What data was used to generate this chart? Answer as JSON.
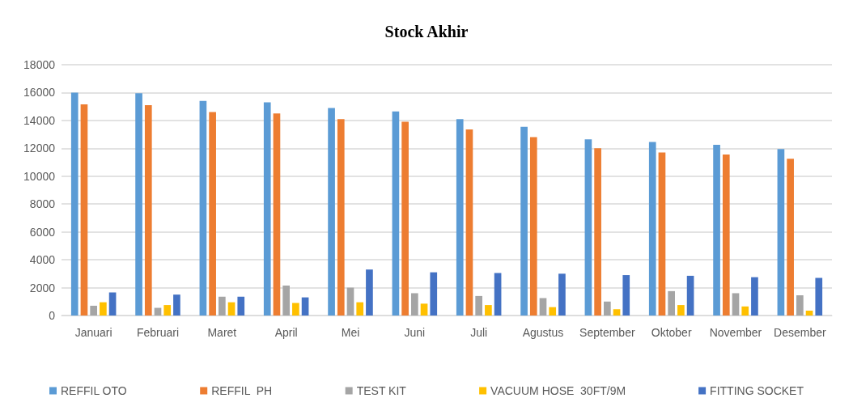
{
  "chart_data": {
    "type": "bar",
    "title": "Stock Akhir",
    "categories": [
      "Januari",
      "Februari",
      "Maret",
      "April",
      "Mei",
      "Juni",
      "Juli",
      "Agustus",
      "September",
      "Oktober",
      "November",
      "Desember"
    ],
    "series": [
      {
        "name": "REFFIL OTO",
        "color": "#5b9bd5",
        "values": [
          16000,
          15950,
          15400,
          15300,
          14900,
          14650,
          14100,
          13550,
          12650,
          12450,
          12250,
          11950
        ]
      },
      {
        "name": "REFFIL  PH",
        "color": "#ed7d31",
        "values": [
          15150,
          15100,
          14600,
          14500,
          14100,
          13900,
          13350,
          12800,
          12000,
          11700,
          11550,
          11250
        ]
      },
      {
        "name": "TEST KIT",
        "color": "#a5a5a5",
        "values": [
          700,
          550,
          1350,
          2150,
          2000,
          1600,
          1400,
          1250,
          1000,
          1750,
          1600,
          1450
        ]
      },
      {
        "name": "VACUUM HOSE  30FT/9M",
        "color": "#ffc000",
        "values": [
          950,
          750,
          950,
          900,
          950,
          850,
          750,
          600,
          450,
          750,
          650,
          350
        ]
      },
      {
        "name": "FITTING SOCKET",
        "color": "#4472c4",
        "values": [
          1650,
          1500,
          1350,
          1300,
          3300,
          3100,
          3050,
          3000,
          2900,
          2850,
          2750,
          2700
        ]
      }
    ],
    "ylim": [
      0,
      18000
    ],
    "yticks": [
      0,
      2000,
      4000,
      6000,
      8000,
      10000,
      12000,
      14000,
      16000,
      18000
    ],
    "grid": "y",
    "legend": "bottom"
  }
}
